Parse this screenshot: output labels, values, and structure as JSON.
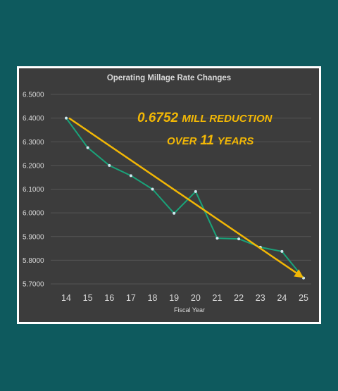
{
  "chart_data": {
    "type": "line",
    "title": "Operating Millage Rate Changes",
    "xlabel": "Fiscal Year",
    "ylabel": "",
    "categories": [
      "14",
      "15",
      "16",
      "17",
      "18",
      "19",
      "20",
      "21",
      "22",
      "23",
      "24",
      "25"
    ],
    "series": [
      {
        "values": [
          6.4,
          6.275,
          6.2,
          6.157,
          6.1,
          5.998,
          6.09,
          5.893,
          5.89,
          5.855,
          5.837,
          5.725
        ]
      }
    ],
    "ylim": [
      5.7,
      6.5
    ],
    "yticks": [
      "6.5000",
      "6.4000",
      "6.3000",
      "6.2000",
      "6.1000",
      "6.0000",
      "5.9000",
      "5.8000",
      "5.7000"
    ],
    "grid": true,
    "trend_arrow": {
      "from_year": "14",
      "from_value": 6.4,
      "to_year": "25",
      "to_value": 5.73
    },
    "annotation": {
      "line1_num": "0.6752",
      "line1_text": "MILL REDUCTION",
      "line2_pre": "OVER",
      "line2_num": "11",
      "line2_text": "YEARS"
    },
    "colors": {
      "line": "#1aa37a",
      "arrow": "#f2b705",
      "marker": "#cfe8f0",
      "grid": "#555555"
    }
  }
}
